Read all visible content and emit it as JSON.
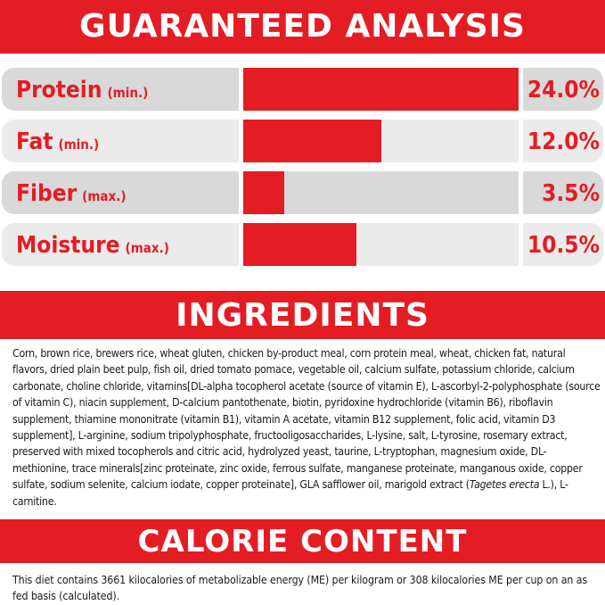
{
  "colors": {
    "accent": "#e41c24",
    "row_dark": "#d9d9d9",
    "row_light": "#ebebeb"
  },
  "analysis": {
    "title": "GUARANTEED ANALYSIS",
    "rows": [
      {
        "name": "Protein",
        "qualifier": "(min.)",
        "value": "24.0%",
        "fill_percent": 100
      },
      {
        "name": "Fat",
        "qualifier": "(min.)",
        "value": "12.0%",
        "fill_percent": 50
      },
      {
        "name": "Fiber",
        "qualifier": "(max.)",
        "value": "3.5%",
        "fill_percent": 15
      },
      {
        "name": "Moisture",
        "qualifier": "(max.)",
        "value": "10.5%",
        "fill_percent": 41
      }
    ]
  },
  "ingredients": {
    "title": "INGREDIENTS",
    "text_before_italic": "Corn, brown rice, brewers rice, wheat gluten, chicken by-product meal, corn protein meal, wheat, chicken fat, natural flavors, dried plain beet pulp, fish oil, dried tomato pomace, vegetable oil, calcium sulfate, potassium chloride, calcium carbonate, choline chloride, vitamins[DL-alpha tocopherol acetate (source of vitamin E), L-ascorbyl-2-polyphosphate (source of vitamin C), niacin supplement, D-calcium pantothenate, biotin, pyridoxine hydrochloride (vitamin B6), riboflavin supplement, thiamine mononitrate (vitamin B1), vitamin A acetate, vitamin B12 supplement, folic acid, vitamin D3 supplement], L-arginine, sodium tripolyphosphate, fructooligosaccharides, L-lysine, salt, L-tyrosine, rosemary extract, preserved with mixed tocopherols and citric acid, hydrolyzed yeast, taurine, L-tryptophan, magnesium oxide, DL-methionine, trace minerals[zinc proteinate, zinc oxide, ferrous sulfate, manganese proteinate, manganous oxide, copper sulfate, sodium selenite, calcium iodate, copper proteinate], GLA safflower oil, marigold extract (",
    "italic": "Tagetes erecta",
    "text_after_italic": " L.), L-carnitine."
  },
  "calorie": {
    "title": "CALORIE CONTENT",
    "text": "This diet contains 3661 kilocalories of metabolizable energy (ME) per kilogram or 308 kilocalories ME per cup on an as fed basis (calculated)."
  }
}
